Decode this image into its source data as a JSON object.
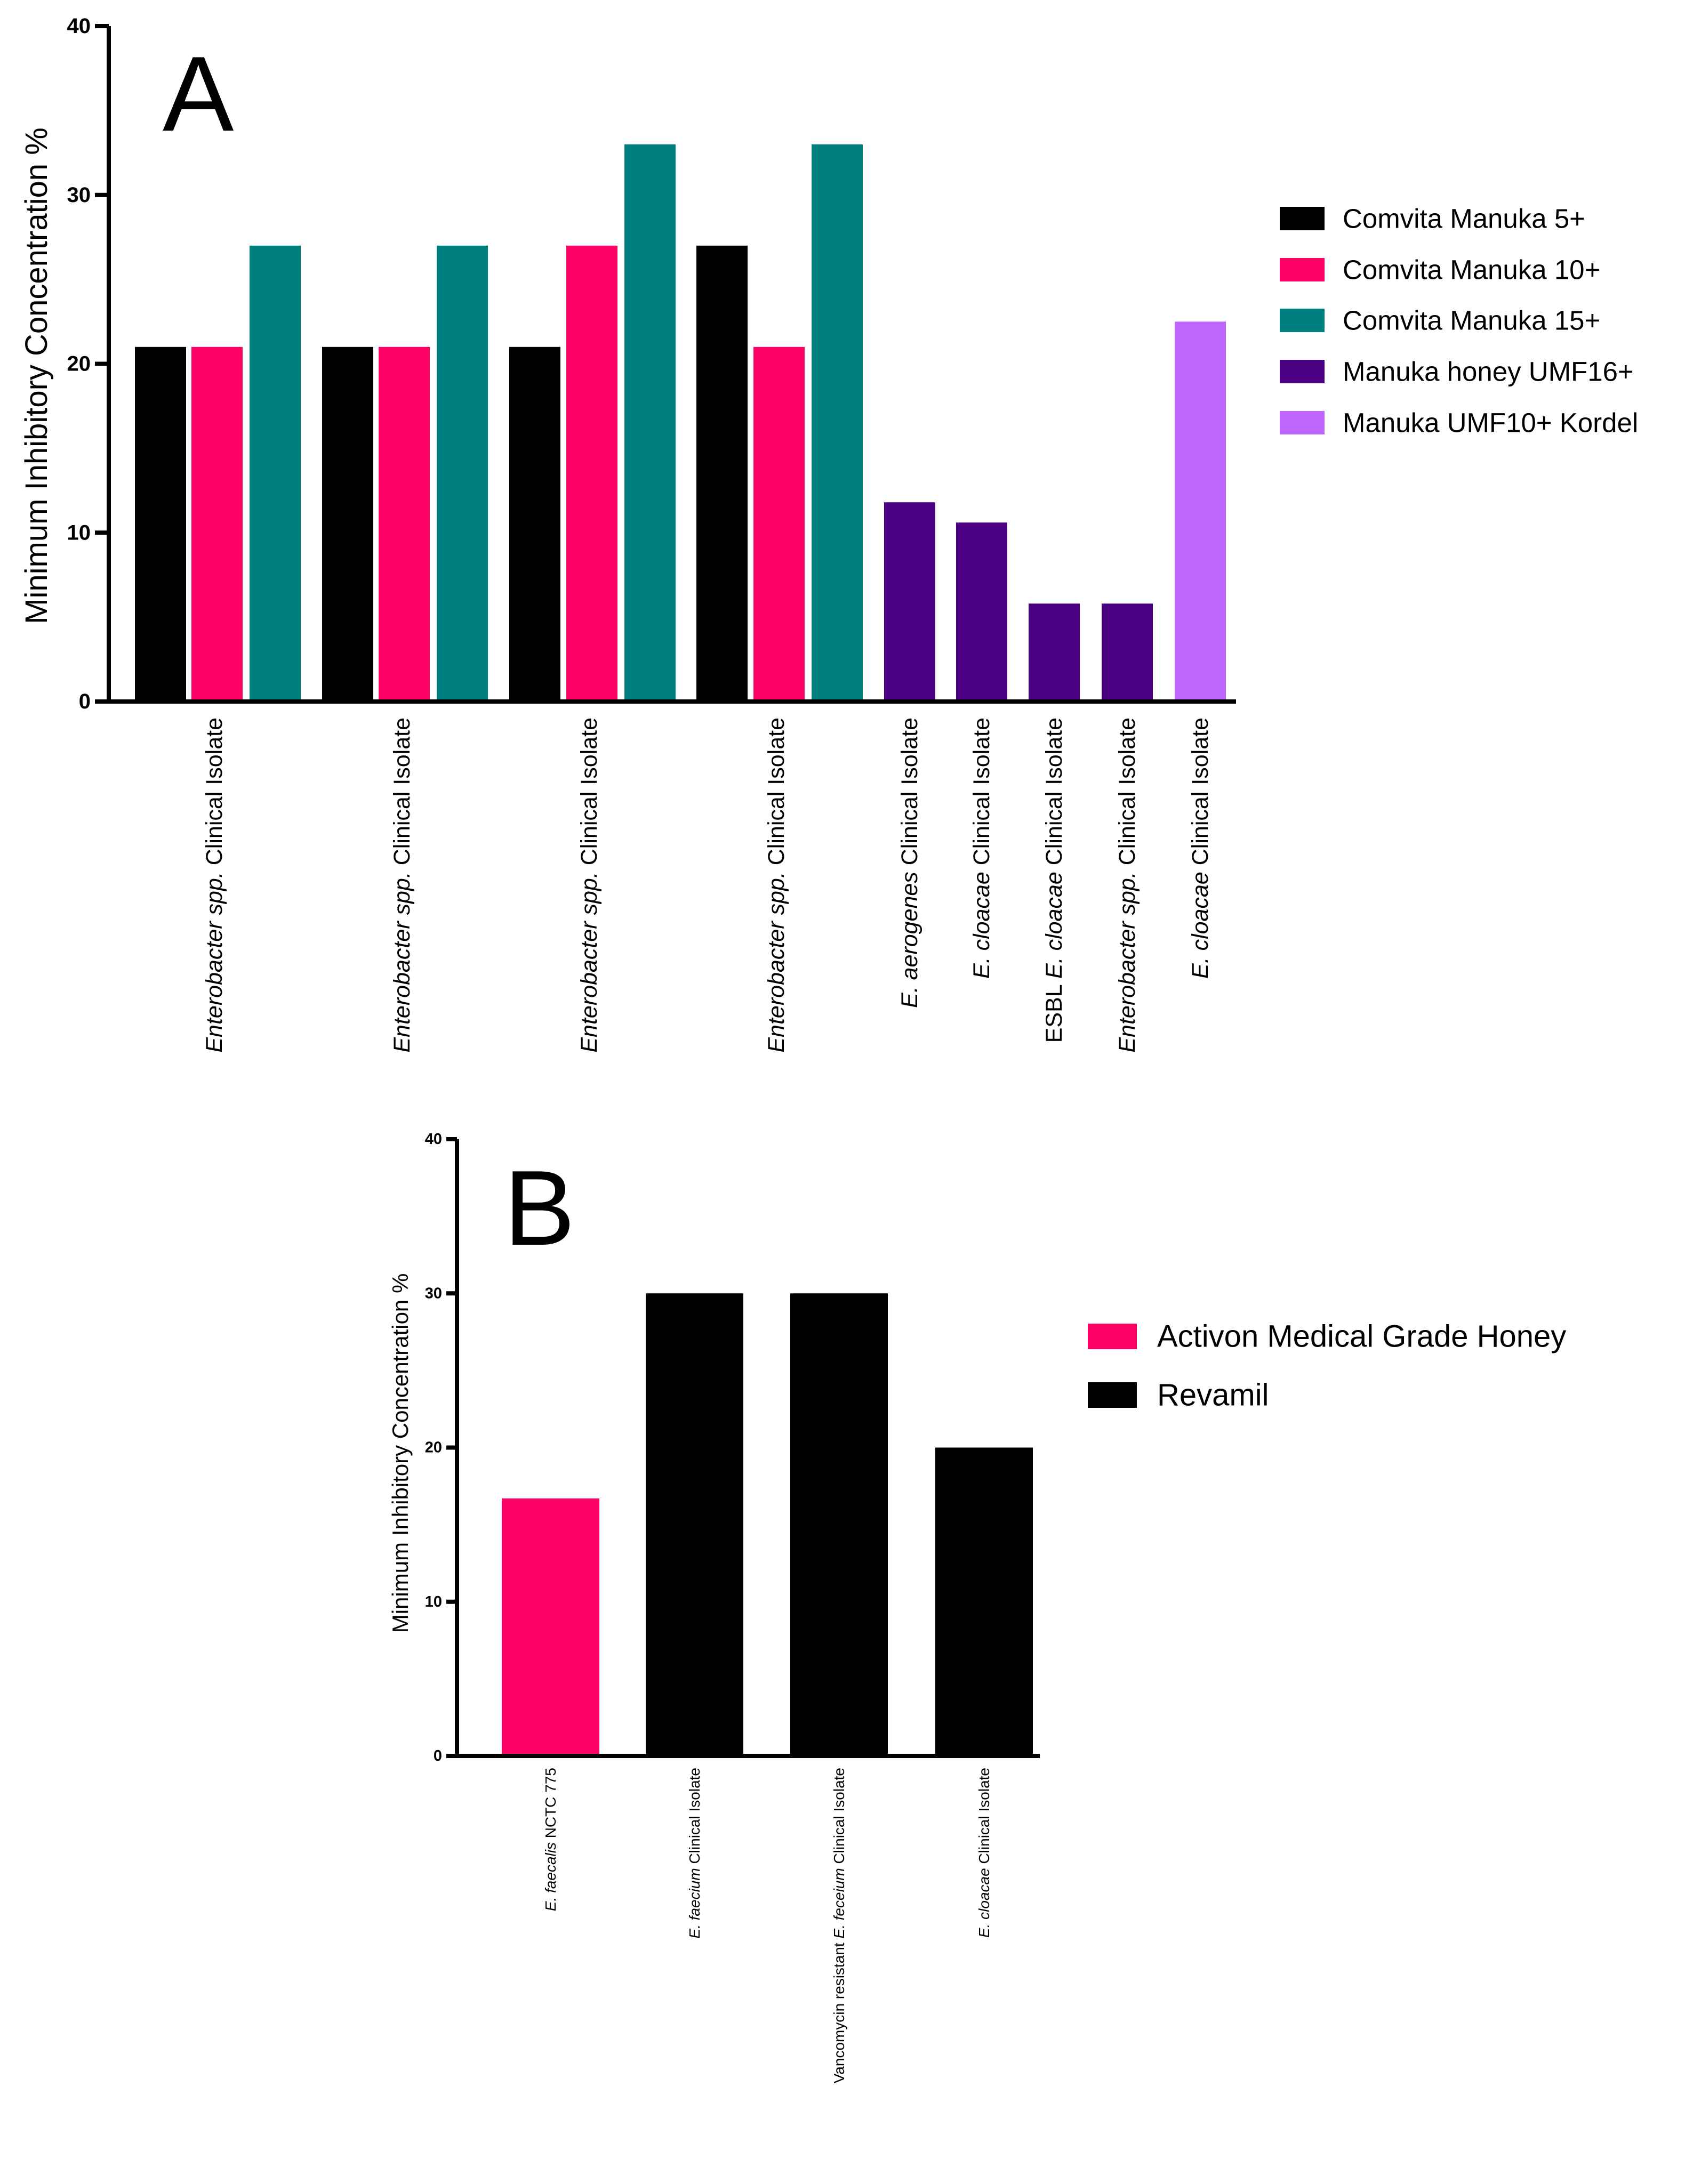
{
  "chart_data": [
    {
      "panel": "A",
      "type": "bar",
      "ylabel": "Minimum Inhibitory Concentration %",
      "ylim": [
        0,
        40
      ],
      "yticks": [
        0,
        10,
        20,
        30,
        40
      ],
      "legend": [
        "Comvita Manuka 5+",
        "Comvita Manuka 10+",
        "Comvita Manuka 15+",
        "Manuka honey UMF16+",
        "Manuka UMF10+ Kordel"
      ],
      "legend_colors": [
        "#000000",
        "#ff0066",
        "#007f7f",
        "#4b0082",
        "#bf66ff"
      ],
      "legend_position": "right",
      "bars": [
        {
          "category": 0,
          "series": "Comvita Manuka 5+",
          "value": 21
        },
        {
          "category": 0,
          "series": "Comvita Manuka 10+",
          "value": 21
        },
        {
          "category": 0,
          "series": "Comvita Manuka 15+",
          "value": 27
        },
        {
          "category": 1,
          "series": "Comvita Manuka 5+",
          "value": 21
        },
        {
          "category": 1,
          "series": "Comvita Manuka 10+",
          "value": 21
        },
        {
          "category": 1,
          "series": "Comvita Manuka 15+",
          "value": 27
        },
        {
          "category": 2,
          "series": "Comvita Manuka 5+",
          "value": 21
        },
        {
          "category": 2,
          "series": "Comvita Manuka 10+",
          "value": 27
        },
        {
          "category": 2,
          "series": "Comvita Manuka 15+",
          "value": 33
        },
        {
          "category": 3,
          "series": "Comvita Manuka 5+",
          "value": 27
        },
        {
          "category": 3,
          "series": "Comvita Manuka 10+",
          "value": 21
        },
        {
          "category": 3,
          "series": "Comvita Manuka 15+",
          "value": 33
        },
        {
          "category": 4,
          "series": "Manuka honey UMF16+",
          "value": 11.8
        },
        {
          "category": 5,
          "series": "Manuka honey UMF16+",
          "value": 10.6
        },
        {
          "category": 6,
          "series": "Manuka honey UMF16+",
          "value": 5.8
        },
        {
          "category": 7,
          "series": "Manuka honey UMF16+",
          "value": 5.8
        },
        {
          "category": 8,
          "series": "Manuka UMF10+ Kordel",
          "value": 22.5
        }
      ],
      "categories": [
        [
          {
            "text": "Enterobacter spp.",
            "italic": true
          },
          {
            "text": " Clinical Isolate",
            "italic": false
          }
        ],
        [
          {
            "text": "Enterobacter spp.",
            "italic": true
          },
          {
            "text": " Clinical Isolate",
            "italic": false
          }
        ],
        [
          {
            "text": "Enterobacter spp.",
            "italic": true
          },
          {
            "text": " Clinical Isolate",
            "italic": false
          }
        ],
        [
          {
            "text": "Enterobacter spp.",
            "italic": true
          },
          {
            "text": " Clinical Isolate",
            "italic": false
          }
        ],
        [
          {
            "text": "E. aerogenes",
            "italic": true
          },
          {
            "text": " Clinical Isolate",
            "italic": false
          }
        ],
        [
          {
            "text": "E. cloacae",
            "italic": true
          },
          {
            "text": " Clinical Isolate",
            "italic": false
          }
        ],
        [
          {
            "text": "ESBL ",
            "italic": false
          },
          {
            "text": "E. cloacae",
            "italic": true
          },
          {
            "text": " Clinical Isolate",
            "italic": false
          }
        ],
        [
          {
            "text": "Enterobacter spp.",
            "italic": true
          },
          {
            "text": " Clinical Isolate",
            "italic": false
          }
        ],
        [
          {
            "text": "E. cloacae",
            "italic": true
          },
          {
            "text": " Clinical Isolate",
            "italic": false
          }
        ]
      ]
    },
    {
      "panel": "B",
      "type": "bar",
      "ylabel": "Minimum Inhibitory Concentration %",
      "ylim": [
        0,
        40
      ],
      "yticks": [
        0,
        10,
        20,
        30,
        40
      ],
      "legend": [
        "Activon Medical Grade Honey",
        "Revamil"
      ],
      "legend_colors": [
        "#ff0066",
        "#000000"
      ],
      "legend_position": "right",
      "bars": [
        {
          "category": 0,
          "series": "Activon Medical Grade Honey",
          "value": 16.7
        },
        {
          "category": 1,
          "series": "Revamil",
          "value": 30
        },
        {
          "category": 2,
          "series": "Revamil",
          "value": 30
        },
        {
          "category": 3,
          "series": "Revamil",
          "value": 20
        }
      ],
      "categories": [
        [
          {
            "text": "E. faecalis",
            "italic": true
          },
          {
            "text": " NCTC 775",
            "italic": false
          }
        ],
        [
          {
            "text": "E. faecium",
            "italic": true
          },
          {
            "text": " Clinical Isolate",
            "italic": false
          }
        ],
        [
          {
            "text": "Vancomycin resistant ",
            "italic": false
          },
          {
            "text": "E. feceium",
            "italic": true
          },
          {
            "text": " Clinical Isolate",
            "italic": false
          }
        ],
        [
          {
            "text": "E. cloacae",
            "italic": true
          },
          {
            "text": " Clinical Isolate",
            "italic": false
          }
        ]
      ]
    }
  ]
}
